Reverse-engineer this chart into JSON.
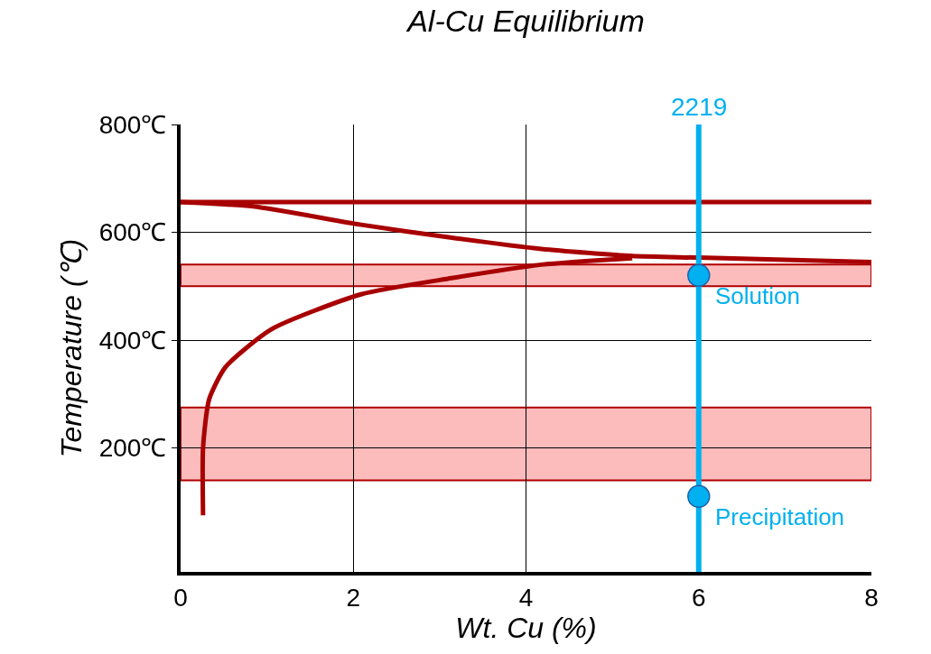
{
  "chart_data": {
    "type": "line",
    "title": "Al-Cu Equilibrium",
    "xlabel": "Wt. Cu (%)",
    "ylabel": "Temperature (℃)",
    "xlim": [
      0,
      8
    ],
    "xticks": [
      0,
      2,
      4,
      6,
      8
    ],
    "ylim": [
      -30,
      800
    ],
    "yticks": [
      {
        "value": 200,
        "label": "200℃"
      },
      {
        "value": 400,
        "label": "400℃"
      },
      {
        "value": 600,
        "label": "600℃"
      },
      {
        "value": 800,
        "label": "800℃"
      }
    ],
    "grid": true,
    "legend": false,
    "series": [
      {
        "color": "#a80000",
        "x": [
          0,
          0.84,
          2.09,
          3.14,
          4.18,
          5.23,
          6,
          8
        ],
        "values": [
          656,
          648,
          614,
          590,
          569,
          556,
          553,
          545
        ]
      },
      {
        "color": "#a80000",
        "x": [
          0.26,
          0.26,
          0.33,
          0.52,
          1.05,
          2.09,
          3.14,
          4.18,
          5.23
        ],
        "values": [
          75,
          200,
          290,
          350,
          420,
          485,
          515,
          540,
          552
        ]
      },
      {
        "name": "2219",
        "color": "#00b0f0",
        "x": [
          6,
          6
        ],
        "values": [
          -30,
          800
        ]
      },
      {
        "type": "scatter",
        "marker": "circle",
        "color": "#00b0f0",
        "x": [
          6,
          6
        ],
        "values": [
          520,
          110
        ]
      }
    ],
    "ref_lines": [
      {
        "axis": "y",
        "value": 656,
        "color": "#a80000"
      }
    ],
    "bands": [
      {
        "axis": "y",
        "from": 500,
        "to": 540,
        "color": "#fcbcbc"
      },
      {
        "axis": "y",
        "from": 140,
        "to": 275,
        "color": "#fcbcbc"
      }
    ],
    "annotations": [
      {
        "text": "Solution",
        "x": 6,
        "y": 520
      },
      {
        "text": "Precipitation",
        "x": 6,
        "y": 110
      }
    ]
  }
}
